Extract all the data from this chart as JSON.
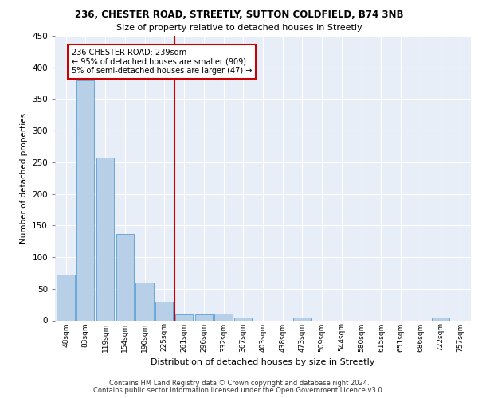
{
  "title1": "236, CHESTER ROAD, STREETLY, SUTTON COLDFIELD, B74 3NB",
  "title2": "Size of property relative to detached houses in Streetly",
  "xlabel": "Distribution of detached houses by size in Streetly",
  "ylabel": "Number of detached properties",
  "categories": [
    "48sqm",
    "83sqm",
    "119sqm",
    "154sqm",
    "190sqm",
    "225sqm",
    "261sqm",
    "296sqm",
    "332sqm",
    "367sqm",
    "403sqm",
    "438sqm",
    "473sqm",
    "509sqm",
    "544sqm",
    "580sqm",
    "615sqm",
    "651sqm",
    "686sqm",
    "722sqm",
    "757sqm"
  ],
  "values": [
    72,
    379,
    258,
    136,
    60,
    30,
    10,
    9,
    11,
    5,
    0,
    0,
    4,
    0,
    0,
    0,
    0,
    0,
    0,
    4,
    0
  ],
  "bar_color": "#b8cfe8",
  "bar_edge_color": "#5a9fd4",
  "vline_x": 5.5,
  "vline_color": "#cc0000",
  "annotation_line1": "236 CHESTER ROAD: 239sqm",
  "annotation_line2": "← 95% of detached houses are smaller (909)",
  "annotation_line3": "5% of semi-detached houses are larger (47) →",
  "annotation_box_color": "#cc0000",
  "annotation_bg": "#ffffff",
  "ylim": [
    0,
    450
  ],
  "yticks": [
    0,
    50,
    100,
    150,
    200,
    250,
    300,
    350,
    400,
    450
  ],
  "bg_color": "#e8eef8",
  "footer1": "Contains HM Land Registry data © Crown copyright and database right 2024.",
  "footer2": "Contains public sector information licensed under the Open Government Licence v3.0."
}
